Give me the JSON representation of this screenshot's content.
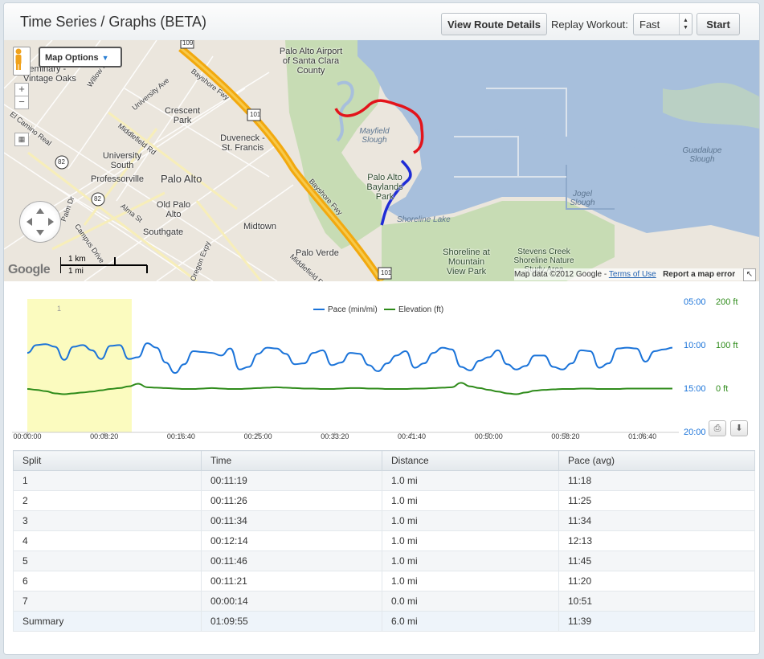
{
  "header": {
    "title": "Time Series / Graphs (BETA)",
    "view_route_label": "View Route Details",
    "replay_label": "Replay Workout:",
    "replay_speed": "Fast",
    "start_label": "Start"
  },
  "map": {
    "options_label": "Map Options",
    "zoom_in": "+",
    "zoom_out": "−",
    "scale_km": "1 km",
    "scale_mi": "1 mi",
    "google_logo": "Google",
    "attribution": "Map data ©2012 Google - ",
    "terms": "Terms of Use",
    "report": "Report a map error",
    "places": {
      "palo_alto_airport": "Palo Alto Airport of Santa Clara County",
      "seminary": "Seminary - Vintage Oaks",
      "crescent_park": "Crescent Park",
      "duveneck": "Duveneck - St. Francis",
      "university_south": "University South",
      "professorville": "Professorville",
      "palo_alto": "Palo Alto",
      "old_palo_alto": "Old Palo Alto",
      "southgate": "Southgate",
      "midtown": "Midtown",
      "palo_verde": "Palo Verde",
      "mayfield_slough": "Mayfield Slough",
      "baylands": "Palo Alto Baylands Park",
      "shoreline_lake": "Shoreline Lake",
      "shoreline_mountain_view": "Shoreline at Mountain View Park",
      "stevens_creek": "Stevens Creek Shoreline Nature Study Area",
      "jogel_slough": "Jogel Slough",
      "guadalupe_slough": "Guadalupe Slough",
      "bayshore": "Bayshore Fwy",
      "university_ave": "University Ave",
      "middlefield": "Middlefield Rd",
      "el_camino": "El Camino Real",
      "alma": "Alma St",
      "palm_dr": "Palm Dr",
      "campus_dr": "Campus Drive",
      "oregon_expy": "Oregon Expy",
      "middlefield2": "Middlefield Rd",
      "willow": "Willow Rd",
      "hwy101a": "101",
      "hwy101b": "101",
      "hwy82a": "82",
      "hwy82b": "82",
      "hwy109": "109"
    }
  },
  "chart_data": {
    "type": "line",
    "legend": [
      "Pace (min/mi)",
      "Elevation (ft)"
    ],
    "x_ticks": [
      "00:00:00",
      "00:08:20",
      "00:16:40",
      "00:25:00",
      "00:33:20",
      "00:41:40",
      "00:50:00",
      "00:58:20",
      "01:06:40"
    ],
    "pace_ticks": [
      "05:00",
      "10:00",
      "15:00",
      "20:00"
    ],
    "elev_ticks": [
      "200 ft",
      "100 ft",
      "0 ft"
    ],
    "highlight_label": "1",
    "x_seconds": [
      0,
      60,
      120,
      180,
      240,
      300,
      360,
      420,
      480,
      540,
      600,
      660,
      720,
      780,
      840,
      900,
      960,
      1020,
      1080,
      1140,
      1200,
      1260,
      1320,
      1380,
      1440,
      1500,
      1560,
      1620,
      1680,
      1740,
      1800,
      1860,
      1920,
      1980,
      2040,
      2100,
      2160,
      2220,
      2280,
      2340,
      2400,
      2460,
      2520,
      2580,
      2640,
      2700,
      2760,
      2820,
      2880,
      2940,
      3000,
      3060,
      3120,
      3180,
      3240,
      3300,
      3360,
      3420,
      3480,
      3540,
      3600,
      3660,
      3720,
      3780,
      3840,
      3900,
      3960,
      4020,
      4080,
      4140,
      4195
    ],
    "pace_min": [
      10.9,
      10.0,
      9.9,
      10.2,
      11.7,
      10.2,
      10.0,
      10.6,
      11.6,
      10.1,
      10.0,
      11.6,
      11.4,
      9.8,
      10.3,
      12.0,
      13.2,
      12.2,
      10.7,
      10.8,
      10.9,
      11.2,
      10.4,
      12.8,
      12.5,
      11.0,
      10.3,
      10.4,
      11.0,
      12.2,
      12.1,
      10.9,
      10.6,
      12.3,
      12.0,
      10.9,
      11.0,
      12.3,
      13.0,
      12.1,
      11.2,
      10.7,
      12.6,
      12.1,
      10.9,
      10.3,
      10.5,
      12.5,
      12.9,
      11.8,
      11.4,
      10.6,
      12.2,
      12.8,
      12.4,
      11.2,
      11.2,
      12.5,
      12.8,
      12.1,
      10.6,
      10.7,
      12.6,
      12.1,
      10.4,
      10.3,
      10.4,
      11.9,
      10.7,
      10.5,
      10.3
    ],
    "elevation_ft": [
      0,
      -2,
      -5,
      -10,
      -12,
      -10,
      -8,
      -6,
      -3,
      0,
      2,
      6,
      12,
      4,
      3,
      2,
      1,
      0,
      0,
      1,
      2,
      1,
      0,
      0,
      1,
      2,
      3,
      4,
      3,
      2,
      1,
      1,
      0,
      0,
      1,
      2,
      2,
      1,
      1,
      0,
      0,
      0,
      1,
      1,
      2,
      3,
      4,
      14,
      6,
      2,
      -2,
      -6,
      -10,
      -12,
      -8,
      -4,
      -2,
      -1,
      0,
      0,
      1,
      1,
      0,
      0,
      0,
      1,
      1,
      1,
      1,
      1,
      1
    ],
    "highlight_x_range": [
      0,
      679
    ]
  },
  "splits": {
    "headers": [
      "Split",
      "Time",
      "Distance",
      "Pace (avg)"
    ],
    "rows": [
      [
        "1",
        "00:11:19",
        "1.0 mi",
        "11:18"
      ],
      [
        "2",
        "00:11:26",
        "1.0 mi",
        "11:25"
      ],
      [
        "3",
        "00:11:34",
        "1.0 mi",
        "11:34"
      ],
      [
        "4",
        "00:12:14",
        "1.0 mi",
        "12:13"
      ],
      [
        "5",
        "00:11:46",
        "1.0 mi",
        "11:45"
      ],
      [
        "6",
        "00:11:21",
        "1.0 mi",
        "11:20"
      ],
      [
        "7",
        "00:00:14",
        "0.0 mi",
        "10:51"
      ]
    ],
    "summary": [
      "Summary",
      "01:09:55",
      "6.0 mi",
      "11:39"
    ]
  },
  "colors": {
    "pace": "#1a73d9",
    "elevation": "#2e8b1a",
    "highlight": "#fbfbbf",
    "route_start": "#e3141b",
    "route_end": "#1f2cd6",
    "water": "#a7bfdc",
    "freeway": "#f2a90f",
    "park": "#c7dcb4"
  }
}
